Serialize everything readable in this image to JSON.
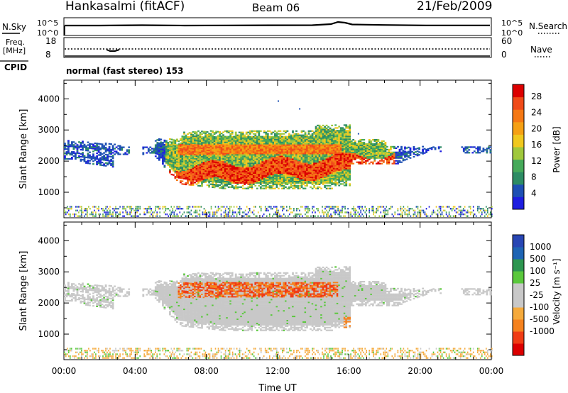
{
  "header": {
    "station": "Hankasalmi (fitACF)",
    "beam": "Beam 06",
    "date": "21/Feb/2009"
  },
  "status_panels": {
    "nsky_label": "N.Sky",
    "nsearch_label": "N.Search",
    "nsky_ticks": [
      "10^5",
      "10^0"
    ],
    "nsearch_ticks": [
      "10^5",
      "10^0"
    ],
    "freq_label_1": "Freq.",
    "freq_label_2": "[MHz]",
    "freq_ticks": [
      "18",
      "8"
    ],
    "nave_label": "Nave",
    "nave_ticks": [
      "60",
      "0"
    ],
    "cpid_label": "CPID",
    "cpid_value": "normal (fast stereo) 153"
  },
  "colors": {
    "power": [
      "#1e1ee0",
      "#1e50b4",
      "#2d8c64",
      "#46aa5a",
      "#a0c83c",
      "#f0c81e",
      "#f5a014",
      "#f57814",
      "#f04b19",
      "#dc0000"
    ],
    "velocity": [
      "#dc0000",
      "#f03c14",
      "#f5821e",
      "#f5aa3c",
      "#c8c8c8",
      "#c8c8c8",
      "#5ac83c",
      "#2d9650",
      "#1e64b4",
      "#2846b4"
    ]
  },
  "chart_data": [
    {
      "type": "heatmap",
      "name": "power-panel",
      "ylabel": "Slant Range [km]",
      "yticks": [
        "1000",
        "2000",
        "3000",
        "4000"
      ],
      "ylim": [
        180,
        4600
      ],
      "colorbar_label": "Power [dB]",
      "colorbar_ticks": [
        "4",
        "8",
        "12",
        "16",
        "20",
        "24",
        "28"
      ],
      "clim": [
        0,
        31
      ]
    },
    {
      "type": "heatmap",
      "name": "velocity-panel",
      "ylabel": "Slant Range [km]",
      "yticks": [
        "1000",
        "2000",
        "3000",
        "4000"
      ],
      "ylim": [
        180,
        4600
      ],
      "colorbar_label": "Velocity [m s⁻¹]",
      "colorbar_ticks": [
        "1000",
        "500",
        "100",
        "25",
        "-25",
        "-100",
        "-500",
        "-1000"
      ],
      "xlabel": "Time UT",
      "xticks": [
        "00:00",
        "04:00",
        "08:00",
        "12:00",
        "16:00",
        "20:00",
        "00:00"
      ],
      "xlim": [
        0,
        24
      ]
    }
  ]
}
